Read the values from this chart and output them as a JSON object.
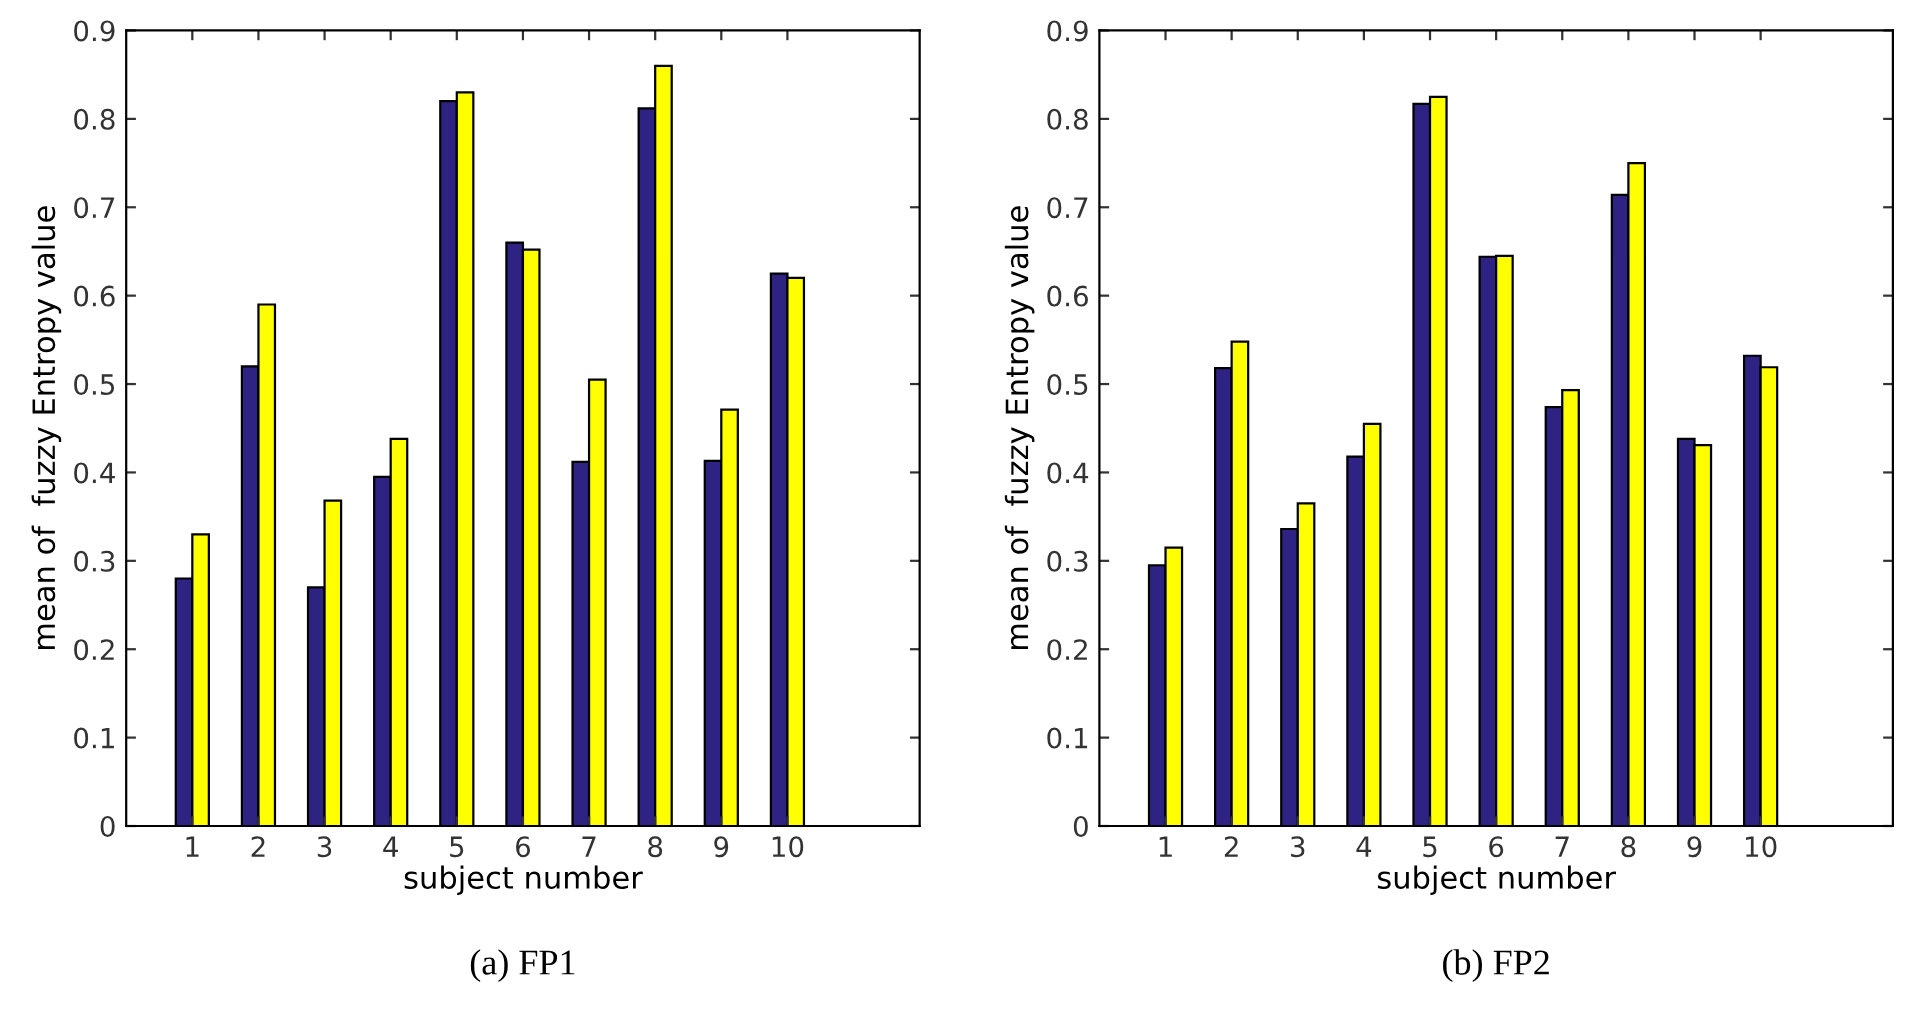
{
  "chart_data": [
    {
      "type": "bar",
      "xlabel": "subject number",
      "ylabel": "mean of  fuzzy Entropy value",
      "annotations": [
        "(a) FP1"
      ],
      "categories": [
        "1",
        "2",
        "3",
        "4",
        "5",
        "6",
        "7",
        "8",
        "9",
        "10"
      ],
      "series": [
        {
          "color": "#2e2382",
          "values": [
            0.28,
            0.52,
            0.27,
            0.395,
            0.82,
            0.66,
            0.412,
            0.812,
            0.413,
            0.625
          ]
        },
        {
          "color": "#ffff00",
          "values": [
            0.33,
            0.59,
            0.368,
            0.438,
            0.83,
            0.652,
            0.505,
            0.86,
            0.471,
            0.62
          ]
        }
      ],
      "ylim": [
        0,
        0.9
      ],
      "yticks": [
        0,
        0.1,
        0.2,
        0.3,
        0.4,
        0.5,
        0.6,
        0.7,
        0.8,
        0.9
      ],
      "grid": false,
      "legend": false
    },
    {
      "type": "bar",
      "xlabel": "subject number",
      "ylabel": "mean of  fuzzy Entropy value",
      "annotations": [
        "(b) FP2"
      ],
      "categories": [
        "1",
        "2",
        "3",
        "4",
        "5",
        "6",
        "7",
        "8",
        "9",
        "10"
      ],
      "series": [
        {
          "color": "#2e2382",
          "values": [
            0.295,
            0.518,
            0.336,
            0.418,
            0.817,
            0.644,
            0.474,
            0.714,
            0.438,
            0.532
          ]
        },
        {
          "color": "#ffff00",
          "values": [
            0.315,
            0.548,
            0.365,
            0.455,
            0.825,
            0.645,
            0.493,
            0.75,
            0.431,
            0.519
          ]
        }
      ],
      "ylim": [
        0,
        0.9
      ],
      "yticks": [
        0,
        0.1,
        0.2,
        0.3,
        0.4,
        0.5,
        0.6,
        0.7,
        0.8,
        0.9
      ],
      "grid": false,
      "legend": false
    }
  ]
}
